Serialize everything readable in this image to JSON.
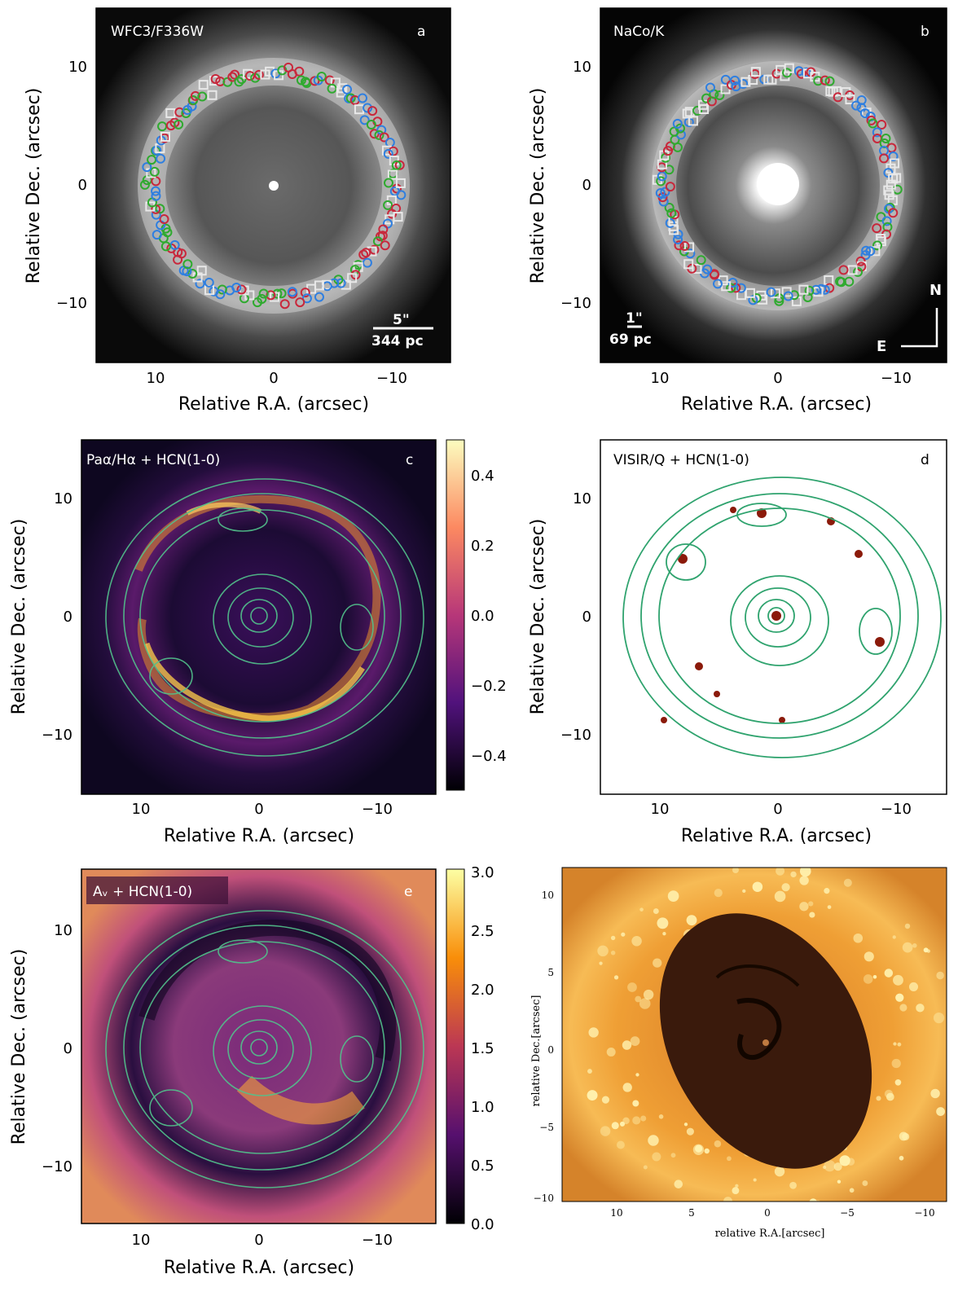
{
  "figure": {
    "xlabel": "Relative R.A. (arcsec)",
    "ylabel": "Relative Dec. (arcsec)",
    "ticks": [
      "10",
      "0",
      "−10"
    ],
    "legend_colors": {
      "red": "#c8283c",
      "green": "#2faa2f",
      "blue": "#2f7fe0",
      "white": "#e8e8e8"
    }
  },
  "panels": {
    "a": {
      "title": "WFC3/F336W",
      "letter": "a",
      "scale_arcsec": "5\"",
      "scale_pc": "344 pc"
    },
    "b": {
      "title": "NaCo/K",
      "letter": "b",
      "scale_arcsec": "1\"",
      "scale_pc": "69 pc",
      "north": "N",
      "east": "E"
    },
    "c": {
      "title": "Paα/Hα + HCN(1-0)",
      "letter": "c",
      "colorbar_ticks": [
        "0.4",
        "0.2",
        "0.0",
        "−0.2",
        "−0.4"
      ]
    },
    "d": {
      "title": "VISIR/Q + HCN(1-0)",
      "letter": "d"
    },
    "e": {
      "title": "Aᵥ + HCN(1-0)",
      "letter": "e",
      "colorbar_ticks": [
        "3.0",
        "2.5",
        "2.0",
        "1.5",
        "1.0",
        "0.5",
        "0.0"
      ]
    },
    "f": {
      "xlabel": "relative R.A.[arcsec]",
      "ylabel": "relative Dec.[arcsec]",
      "xticks": [
        "10",
        "5",
        "0",
        "−5",
        "−10"
      ],
      "yticks": [
        "10",
        "5",
        "0",
        "−5",
        "−10"
      ]
    }
  }
}
